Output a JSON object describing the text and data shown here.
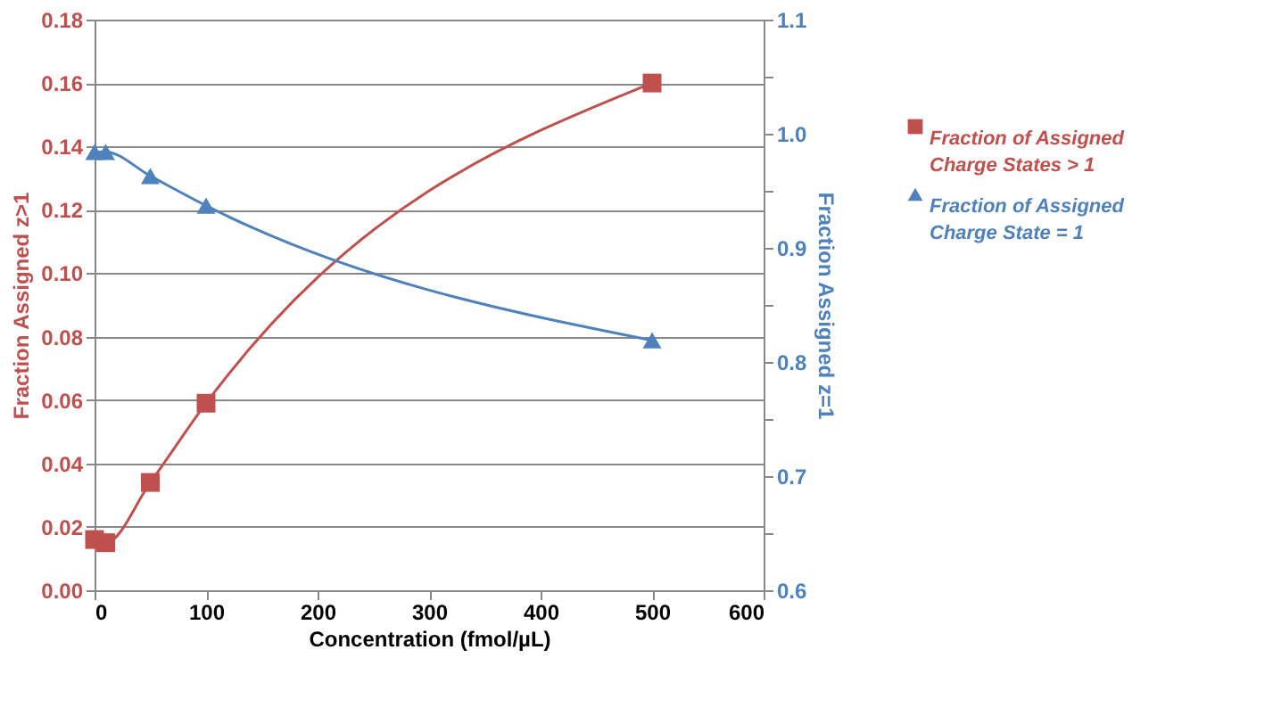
{
  "chart_data": {
    "type": "line",
    "xlabel": "Concentration (fmol/µL)",
    "ylabel": "Fraction Assigned z>1",
    "y2label": "Fraction Assigned z=1",
    "x": [
      0,
      10,
      50,
      100,
      500
    ],
    "series": [
      {
        "name": "Fraction of Assigned Charge States > 1",
        "color": "#c0504d",
        "marker": "square",
        "values": [
          0.016,
          0.015,
          0.034,
          0.059,
          0.16
        ]
      },
      {
        "name": "Fraction of Assigned Charge State = 1",
        "color": "#4f81bd",
        "marker": "triangle",
        "axis": "y2",
        "values": [
          0.984,
          0.984,
          0.963,
          0.937,
          0.819
        ]
      }
    ],
    "xlim": [
      0,
      600
    ],
    "xticks": [
      0,
      100,
      200,
      300,
      400,
      500,
      600
    ],
    "ylim": [
      0,
      0.18
    ],
    "yticks": [
      {
        "value": 0,
        "label": "0.00"
      },
      {
        "value": 0.02,
        "label": "0.02"
      },
      {
        "value": 0.04,
        "label": "0.04"
      },
      {
        "value": 0.06,
        "label": "0.06"
      },
      {
        "value": 0.08,
        "label": "0.08"
      },
      {
        "value": 0.1,
        "label": "0.10"
      },
      {
        "value": 0.12,
        "label": "0.12"
      },
      {
        "value": 0.14,
        "label": "0.14"
      },
      {
        "value": 0.16,
        "label": "0.16"
      },
      {
        "value": 0.18,
        "label": "0.18"
      }
    ],
    "y2lim": [
      0.6,
      1.1
    ],
    "y2ticks": [
      {
        "value": 0.6,
        "label": "0.6"
      },
      {
        "value": 0.65,
        "label": null
      },
      {
        "value": 0.7,
        "label": "0.7"
      },
      {
        "value": 0.75,
        "label": null
      },
      {
        "value": 0.8,
        "label": "0.8"
      },
      {
        "value": 0.85,
        "label": null
      },
      {
        "value": 0.9,
        "label": "0.9"
      },
      {
        "value": 0.95,
        "label": null
      },
      {
        "value": 1.0,
        "label": "1.0"
      },
      {
        "value": 1.05,
        "label": null
      },
      {
        "value": 1.1,
        "label": "1.1"
      }
    ],
    "grid": "y",
    "legend": "right",
    "line_style": "solid"
  }
}
